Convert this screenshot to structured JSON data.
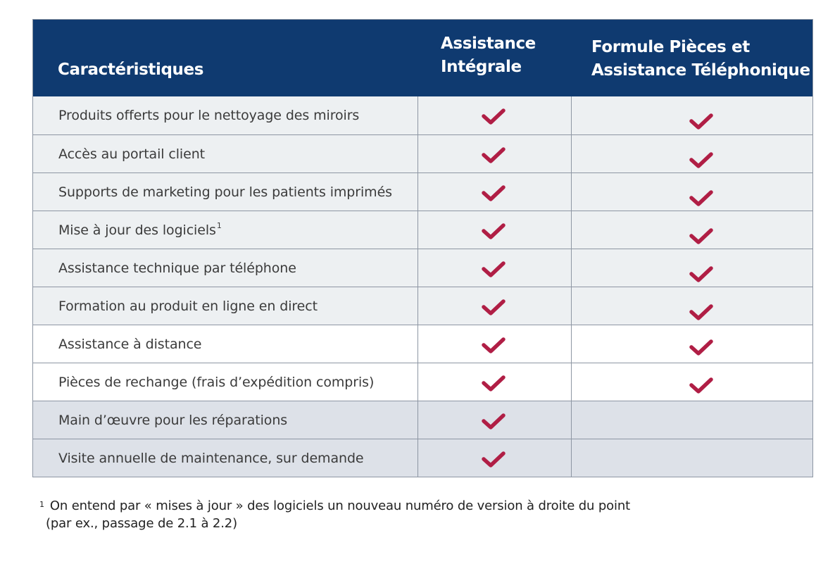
{
  "header": {
    "col1": "Caractéristiques",
    "col2_line1": "Assistance",
    "col2_line2": "Intégrale",
    "col3_line1": "Formule Pièces et",
    "col3_line2": "Assistance Téléphonique"
  },
  "rows": [
    {
      "feature": "Produits offerts pour le nettoyage des miroirs",
      "integrale": true,
      "pieces": true
    },
    {
      "feature": "Accès au portail client",
      "integrale": true,
      "pieces": true
    },
    {
      "feature": "Supports de marketing pour les patients imprimés",
      "integrale": true,
      "pieces": true
    },
    {
      "feature": "Mise à jour des logiciels",
      "sup": "1",
      "integrale": true,
      "pieces": true
    },
    {
      "feature": "Assistance technique par téléphone",
      "integrale": true,
      "pieces": true
    },
    {
      "feature": "Formation au produit en ligne en direct",
      "integrale": true,
      "pieces": true
    },
    {
      "feature": "Assistance à distance",
      "integrale": true,
      "pieces": true
    },
    {
      "feature": "Pièces de rechange (frais d’expédition compris)",
      "integrale": true,
      "pieces": true
    },
    {
      "feature": "Main d’œuvre pour les réparations",
      "integrale": true,
      "pieces": false
    },
    {
      "feature": "Visite annuelle de maintenance, sur demande",
      "integrale": true,
      "pieces": false
    }
  ],
  "footnote": {
    "marker": "1",
    "line1": "On entend par « mises à jour » des logiciels un nouveau numéro de version à droite du point",
    "line2": "(par ex., passage de 2.1 à 2.2)"
  },
  "colors": {
    "header_bg": "#0f3a70",
    "check": "#b01e45",
    "row_light": "#edf0f2",
    "row_dark": "#dde1e8"
  },
  "icons": {
    "check": "check-icon"
  }
}
